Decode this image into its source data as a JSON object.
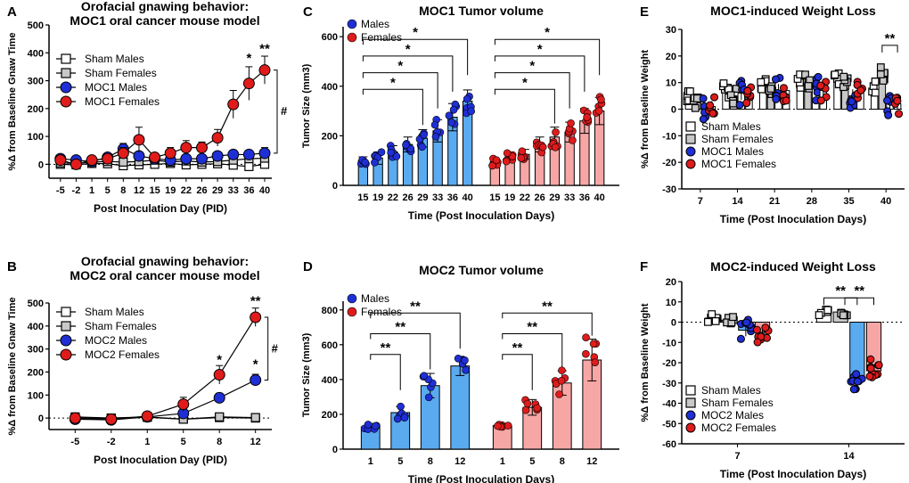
{
  "panels": [
    {
      "id": "A",
      "letter": "A",
      "title": [
        "Orofacial gnawing behavior:",
        "MOC1 oral cancer mouse model"
      ],
      "chart_data": {
        "type": "line",
        "title": "Orofacial gnawing behavior: MOC1 oral cancer mouse model",
        "xlabel": "Post Inoculation Day (PID)",
        "ylabel": "%Δ from Baseline Gnaw Time",
        "ylim": [
          -50,
          500
        ],
        "yticks": [
          0,
          100,
          200,
          300,
          400,
          500
        ],
        "categories": [
          "-5",
          "-2",
          "1",
          "5",
          "8",
          "12",
          "15",
          "19",
          "22",
          "26",
          "29",
          "33",
          "36",
          "40"
        ],
        "series": [
          {
            "name": "Sham Males",
            "marker": "square",
            "color": "#ffffff",
            "values": [
              0,
              -2,
              3,
              2,
              -5,
              -2,
              0,
              3,
              -2,
              0,
              2,
              -3,
              -8,
              0
            ]
          },
          {
            "name": "Sham Females",
            "marker": "square",
            "color": "#c8c8c8",
            "values": [
              5,
              3,
              8,
              10,
              8,
              10,
              15,
              8,
              12,
              8,
              10,
              15,
              20,
              22
            ]
          },
          {
            "name": "MOC1 Males",
            "marker": "circle",
            "color": "#1f2fd6",
            "values": [
              20,
              15,
              10,
              25,
              55,
              30,
              20,
              15,
              20,
              20,
              30,
              35,
              35,
              40
            ],
            "errors": [
              15,
              12,
              10,
              12,
              20,
              15,
              10,
              10,
              12,
              10,
              12,
              15,
              15,
              20
            ]
          },
          {
            "name": "MOC1 Females",
            "marker": "circle",
            "color": "#e01b1b",
            "values": [
              15,
              0,
              15,
              20,
              40,
              88,
              25,
              40,
              60,
              60,
              95,
              215,
              290,
              338
            ],
            "errors": [
              10,
              10,
              10,
              15,
              20,
              45,
              15,
              20,
              25,
              20,
              30,
              50,
              60,
              50
            ]
          }
        ],
        "annotations": [
          {
            "text": "*",
            "category": "36",
            "y": 365
          },
          {
            "text": "**",
            "category": "40",
            "y": 400
          },
          {
            "text": "#",
            "category": "40",
            "y": 190,
            "bracket": [
              40,
              338
            ]
          }
        ],
        "legend": "top-left"
      }
    },
    {
      "id": "B",
      "letter": "B",
      "title": [
        "Orofacial gnawing behavior:",
        "MOC2 oral cancer mouse model"
      ],
      "chart_data": {
        "type": "line",
        "title": "Orofacial gnawing behavior: MOC2 oral cancer mouse model",
        "xlabel": "Post Inoculation Day (PID)",
        "ylabel": "%Δ from Baseline Gnaw Time",
        "ylim": [
          -50,
          500
        ],
        "yticks": [
          0,
          100,
          200,
          300,
          400,
          500
        ],
        "categories": [
          "-5",
          "-2",
          "1",
          "5",
          "8",
          "12"
        ],
        "series": [
          {
            "name": "Sham Males",
            "marker": "square",
            "color": "#ffffff",
            "values": [
              0,
              -2,
              3,
              -5,
              2,
              0
            ]
          },
          {
            "name": "Sham Females",
            "marker": "square",
            "color": "#c8c8c8",
            "values": [
              5,
              0,
              5,
              -5,
              5,
              2
            ]
          },
          {
            "name": "MOC2 Males",
            "marker": "circle",
            "color": "#1f2fd6",
            "values": [
              -5,
              -8,
              5,
              20,
              88,
              165
            ],
            "errors": [
              8,
              8,
              8,
              15,
              20,
              25
            ]
          },
          {
            "name": "MOC2 Females",
            "marker": "circle",
            "color": "#e01b1b",
            "values": [
              0,
              -5,
              8,
              60,
              188,
              438
            ],
            "errors": [
              8,
              8,
              8,
              30,
              40,
              40
            ]
          }
        ],
        "annotations": [
          {
            "text": "*",
            "category": "8",
            "y": 235
          },
          {
            "text": "**",
            "category": "12",
            "y": 490
          },
          {
            "text": "*",
            "category": "12",
            "y": 215
          },
          {
            "text": "#",
            "category": "12",
            "y": 300,
            "bracket": [
              165,
              438
            ]
          }
        ],
        "legend": "top-left"
      }
    },
    {
      "id": "C",
      "letter": "C",
      "title": [
        "MOC1 Tumor volume"
      ],
      "chart_data": {
        "type": "bar",
        "title": "MOC1 Tumor volume",
        "xlabel": "Time (Post Inoculation Days)",
        "ylabel": "Tumor Size (mm3)",
        "ylim": [
          0,
          640
        ],
        "yticks": [
          0,
          200,
          400,
          600
        ],
        "categories": [
          "15",
          "19",
          "22",
          "26",
          "29",
          "33",
          "36",
          "40"
        ],
        "series": [
          {
            "name": "Males",
            "color": "#5aaaf0",
            "dot": "#1f2fd6",
            "values": [
              100,
              110,
              135,
              165,
              190,
              220,
              275,
              340
            ],
            "errors": [
              15,
              25,
              25,
              30,
              35,
              45,
              55,
              45
            ]
          },
          {
            "name": "Females",
            "color": "#f7a6a6",
            "dot": "#e01b1b",
            "values": [
              95,
              115,
              125,
              165,
              195,
              215,
              260,
              300
            ],
            "errors": [
              15,
              20,
              20,
              30,
              40,
              40,
              50,
              55
            ]
          }
        ],
        "significance": [
          {
            "series": 0,
            "from": "15",
            "to": "29",
            "label": "*"
          },
          {
            "series": 0,
            "from": "15",
            "to": "33",
            "label": "*"
          },
          {
            "series": 0,
            "from": "15",
            "to": "36",
            "label": "*"
          },
          {
            "series": 0,
            "from": "15",
            "to": "40",
            "label": "*"
          },
          {
            "series": 1,
            "from": "15",
            "to": "29",
            "label": "*"
          },
          {
            "series": 1,
            "from": "15",
            "to": "33",
            "label": "*"
          },
          {
            "series": 1,
            "from": "15",
            "to": "36",
            "label": "*"
          },
          {
            "series": 1,
            "from": "15",
            "to": "40",
            "label": "*"
          }
        ],
        "legend": "top-left"
      }
    },
    {
      "id": "D",
      "letter": "D",
      "title": [
        "MOC2 Tumor volume"
      ],
      "chart_data": {
        "type": "bar",
        "title": "MOC2 Tumor volume",
        "xlabel": "Time (Post Inoculation Days)",
        "ylabel": "Tumor Size (mm3)",
        "ylim": [
          0,
          850
        ],
        "yticks": [
          0,
          200,
          400,
          600,
          800
        ],
        "categories": [
          "1",
          "5",
          "8",
          "12"
        ],
        "series": [
          {
            "name": "Males",
            "color": "#5aaaf0",
            "dot": "#1f2fd6",
            "values": [
              128,
              210,
              365,
              478
            ],
            "errors": [
              20,
              35,
              70,
              55
            ]
          },
          {
            "name": "Females",
            "color": "#f7a6a6",
            "dot": "#e01b1b",
            "values": [
              135,
              240,
              380,
              512
            ],
            "errors": [
              10,
              45,
              70,
              120
            ]
          }
        ],
        "significance": [
          {
            "series": 0,
            "from": "1",
            "to": "5",
            "label": "**"
          },
          {
            "series": 0,
            "from": "1",
            "to": "8",
            "label": "**"
          },
          {
            "series": 0,
            "from": "1",
            "to": "12",
            "label": "**"
          },
          {
            "series": 1,
            "from": "1",
            "to": "5",
            "label": "**"
          },
          {
            "series": 1,
            "from": "1",
            "to": "8",
            "label": "**"
          },
          {
            "series": 1,
            "from": "1",
            "to": "12",
            "label": "**"
          }
        ],
        "legend": "top-left"
      }
    },
    {
      "id": "E",
      "letter": "E",
      "title": [
        "MOC1-induced Weight Loss"
      ],
      "chart_data": {
        "type": "bar",
        "title": "MOC1-induced Weight Loss",
        "xlabel": "Time (Post Inoculation Days)",
        "ylabel": "%Δ from Baseline Weight",
        "ylim": [
          -30,
          30
        ],
        "yticks": [
          -30,
          -20,
          -10,
          0,
          10,
          20,
          30
        ],
        "categories": [
          "7",
          "14",
          "21",
          "28",
          "35",
          "40"
        ],
        "series": [
          {
            "name": "Sham Males",
            "color": "#ffffff",
            "dot": "#ffffff",
            "marker": "square",
            "values": [
              4,
              7,
              9,
              11,
              12,
              9
            ],
            "spread": 3
          },
          {
            "name": "Sham Females",
            "color": "#c8c8c8",
            "dot": "#c8c8c8",
            "marker": "square",
            "values": [
              2,
              5,
              7,
              10,
              11,
              13
            ],
            "spread": 3
          },
          {
            "name": "MOC1 Males",
            "color": "#ffffff",
            "dot": "#1f2fd6",
            "marker": "circle",
            "values": [
              1,
              6,
              7,
              8,
              5,
              2
            ],
            "spread": 5
          },
          {
            "name": "MOC1 Females",
            "color": "#ffffff",
            "dot": "#e01b1b",
            "marker": "circle",
            "values": [
              1,
              5,
              7,
              7,
              7,
              2
            ],
            "spread": 4
          }
        ],
        "annotations": [
          {
            "text": "**",
            "category": "40",
            "y": 24
          }
        ],
        "legend": "bottom-left"
      }
    },
    {
      "id": "F",
      "letter": "F",
      "title": [
        "MOC2-induced Weight Loss"
      ],
      "chart_data": {
        "type": "bar",
        "title": "MOC2-induced Weight Loss",
        "xlabel": "Time (Post Inoculation Days)",
        "ylabel": "%Δ from Baseline Weight",
        "ylim": [
          -60,
          20
        ],
        "yticks": [
          -60,
          -50,
          -40,
          -30,
          -20,
          -10,
          0,
          10,
          20
        ],
        "categories": [
          "7",
          "14"
        ],
        "series": [
          {
            "name": "Sham Males",
            "color": "#ffffff",
            "dot": "#ffffff",
            "marker": "square",
            "values": [
              2,
              5
            ],
            "spread": 2
          },
          {
            "name": "Sham Females",
            "color": "#c8c8c8",
            "dot": "#c8c8c8",
            "marker": "square",
            "values": [
              1,
              5
            ],
            "spread": 2
          },
          {
            "name": "MOC2 Males",
            "color": "#5aaaf0",
            "dot": "#1f2fd6",
            "marker": "circle",
            "values": [
              -4,
              -28
            ],
            "spread": 6
          },
          {
            "name": "MOC2 Females",
            "color": "#f7a6a6",
            "dot": "#e01b1b",
            "marker": "circle",
            "values": [
              -5,
              -24
            ],
            "spread": 6
          }
        ],
        "annotations": [
          {
            "text": "**",
            "category": "14",
            "y": 12,
            "pair": [
              0,
              2
            ]
          },
          {
            "text": "**",
            "category": "14",
            "y": 12,
            "pair": [
              1,
              3
            ]
          }
        ],
        "legend": "bottom-left"
      }
    }
  ]
}
